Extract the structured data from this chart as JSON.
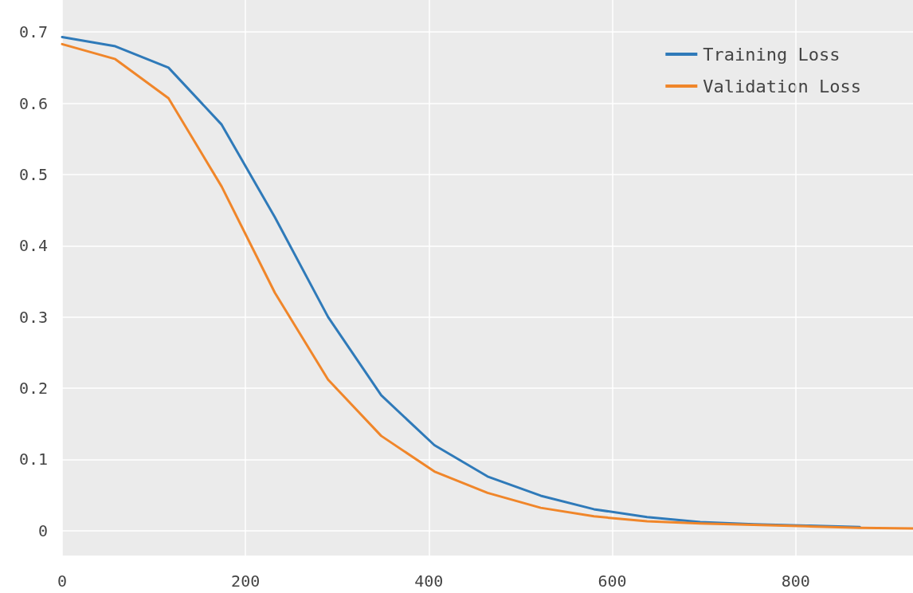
{
  "chart_data": {
    "type": "line",
    "x": [
      0,
      58,
      116,
      174,
      232,
      290,
      348,
      406,
      464,
      522,
      580,
      638,
      696,
      754,
      812,
      870,
      928
    ],
    "series": [
      {
        "name": "Training Loss",
        "color": "#2f7ab9",
        "values": [
          0.693,
          0.68,
          0.65,
          0.57,
          0.44,
          0.3,
          0.19,
          0.12,
          0.076,
          0.049,
          0.03,
          0.019,
          0.012,
          0.009,
          0.007,
          0.005,
          null
        ]
      },
      {
        "name": "Validation Loss",
        "color": "#f0862a",
        "values": [
          0.683,
          0.662,
          0.607,
          0.483,
          0.334,
          0.212,
          0.133,
          0.083,
          0.053,
          0.032,
          0.02,
          0.013,
          0.01,
          0.008,
          0.006,
          0.004,
          0.003
        ]
      }
    ],
    "xlim": [
      0,
      928
    ],
    "xticks": [
      0,
      200,
      400,
      600,
      800
    ],
    "ylim": [
      -0.035,
      0.745
    ],
    "yticks": [
      {
        "value": 0,
        "label": "0"
      },
      {
        "value": 0.1,
        "label": "0.1"
      },
      {
        "value": 0.2,
        "label": "0.2"
      },
      {
        "value": 0.3,
        "label": "0.3"
      },
      {
        "value": 0.4,
        "label": "0.4"
      },
      {
        "value": 0.5,
        "label": "0.5"
      },
      {
        "value": 0.6,
        "label": "0.6"
      },
      {
        "value": 0.7,
        "label": "0.7"
      }
    ],
    "grid": true,
    "legend": "top right",
    "marker": "none",
    "line_style": "solid"
  }
}
